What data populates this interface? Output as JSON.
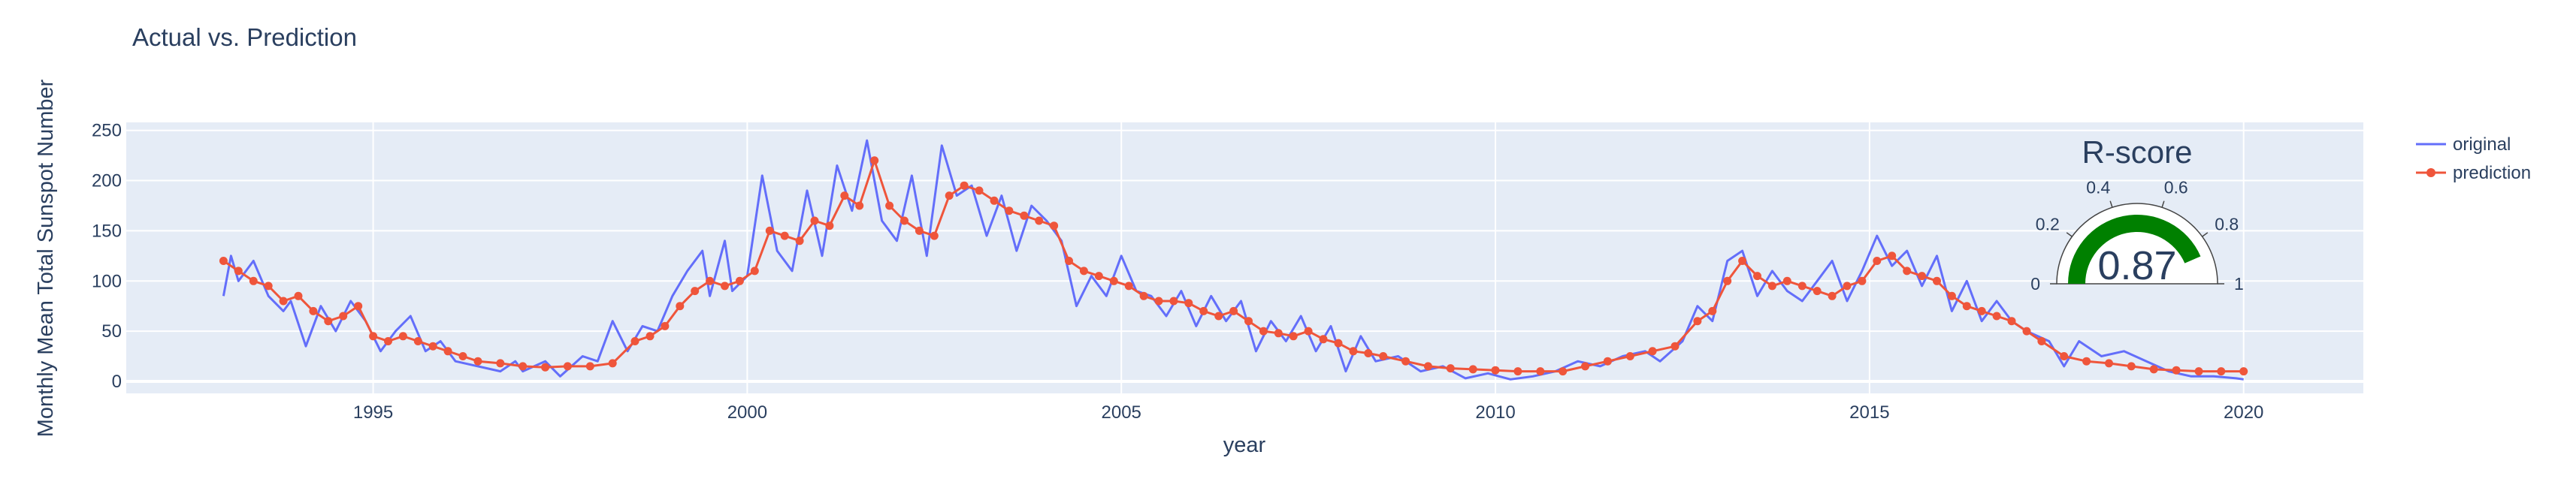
{
  "chart_data": {
    "type": "line",
    "title": "Actual vs. Prediction",
    "xlabel": "year",
    "ylabel": "Monthly Mean Total Sunspot Number",
    "xlim": [
      1991.7,
      2021.6
    ],
    "ylim": [
      -12,
      258
    ],
    "x_ticks": [
      1995,
      2000,
      2005,
      2010,
      2015,
      2020
    ],
    "y_ticks": [
      0,
      50,
      100,
      150,
      200,
      250
    ],
    "grid": true,
    "legend_position": "top-right",
    "series": [
      {
        "name": "original",
        "color": "#636efa",
        "mode": "lines",
        "points": [
          [
            1993.0,
            85
          ],
          [
            1993.1,
            125
          ],
          [
            1993.2,
            100
          ],
          [
            1993.4,
            120
          ],
          [
            1993.6,
            85
          ],
          [
            1993.8,
            70
          ],
          [
            1993.9,
            80
          ],
          [
            1994.1,
            35
          ],
          [
            1994.3,
            75
          ],
          [
            1994.5,
            50
          ],
          [
            1994.7,
            80
          ],
          [
            1994.9,
            60
          ],
          [
            1995.1,
            30
          ],
          [
            1995.3,
            50
          ],
          [
            1995.5,
            65
          ],
          [
            1995.7,
            30
          ],
          [
            1995.9,
            40
          ],
          [
            1996.1,
            20
          ],
          [
            1996.4,
            15
          ],
          [
            1996.7,
            10
          ],
          [
            1996.9,
            20
          ],
          [
            1997.0,
            10
          ],
          [
            1997.3,
            20
          ],
          [
            1997.5,
            5
          ],
          [
            1997.8,
            25
          ],
          [
            1998.0,
            20
          ],
          [
            1998.2,
            60
          ],
          [
            1998.4,
            30
          ],
          [
            1998.6,
            55
          ],
          [
            1998.8,
            50
          ],
          [
            1999.0,
            85
          ],
          [
            1999.2,
            110
          ],
          [
            1999.4,
            130
          ],
          [
            1999.5,
            85
          ],
          [
            1999.7,
            140
          ],
          [
            1999.8,
            90
          ],
          [
            2000.0,
            105
          ],
          [
            2000.2,
            205
          ],
          [
            2000.4,
            130
          ],
          [
            2000.6,
            110
          ],
          [
            2000.8,
            190
          ],
          [
            2001.0,
            125
          ],
          [
            2001.2,
            215
          ],
          [
            2001.4,
            170
          ],
          [
            2001.6,
            240
          ],
          [
            2001.8,
            160
          ],
          [
            2002.0,
            140
          ],
          [
            2002.2,
            205
          ],
          [
            2002.4,
            125
          ],
          [
            2002.6,
            235
          ],
          [
            2002.8,
            185
          ],
          [
            2003.0,
            195
          ],
          [
            2003.2,
            145
          ],
          [
            2003.4,
            185
          ],
          [
            2003.6,
            130
          ],
          [
            2003.8,
            175
          ],
          [
            2004.0,
            160
          ],
          [
            2004.2,
            140
          ],
          [
            2004.4,
            75
          ],
          [
            2004.6,
            105
          ],
          [
            2004.8,
            85
          ],
          [
            2005.0,
            125
          ],
          [
            2005.2,
            90
          ],
          [
            2005.4,
            85
          ],
          [
            2005.6,
            65
          ],
          [
            2005.8,
            90
          ],
          [
            2006.0,
            55
          ],
          [
            2006.2,
            85
          ],
          [
            2006.4,
            60
          ],
          [
            2006.6,
            80
          ],
          [
            2006.8,
            30
          ],
          [
            2007.0,
            60
          ],
          [
            2007.2,
            40
          ],
          [
            2007.4,
            65
          ],
          [
            2007.6,
            30
          ],
          [
            2007.8,
            55
          ],
          [
            2008.0,
            10
          ],
          [
            2008.2,
            45
          ],
          [
            2008.4,
            20
          ],
          [
            2008.7,
            25
          ],
          [
            2009.0,
            10
          ],
          [
            2009.3,
            15
          ],
          [
            2009.6,
            3
          ],
          [
            2009.9,
            8
          ],
          [
            2010.2,
            2
          ],
          [
            2010.5,
            5
          ],
          [
            2010.8,
            10
          ],
          [
            2011.1,
            20
          ],
          [
            2011.4,
            15
          ],
          [
            2011.7,
            25
          ],
          [
            2012.0,
            30
          ],
          [
            2012.2,
            20
          ],
          [
            2012.5,
            40
          ],
          [
            2012.7,
            75
          ],
          [
            2012.9,
            60
          ],
          [
            2013.1,
            120
          ],
          [
            2013.3,
            130
          ],
          [
            2013.5,
            85
          ],
          [
            2013.7,
            110
          ],
          [
            2013.9,
            90
          ],
          [
            2014.1,
            80
          ],
          [
            2014.3,
            100
          ],
          [
            2014.5,
            120
          ],
          [
            2014.7,
            80
          ],
          [
            2014.9,
            110
          ],
          [
            2015.1,
            145
          ],
          [
            2015.3,
            115
          ],
          [
            2015.5,
            130
          ],
          [
            2015.7,
            95
          ],
          [
            2015.9,
            125
          ],
          [
            2016.1,
            70
          ],
          [
            2016.3,
            100
          ],
          [
            2016.5,
            60
          ],
          [
            2016.7,
            80
          ],
          [
            2016.9,
            60
          ],
          [
            2017.1,
            50
          ],
          [
            2017.4,
            40
          ],
          [
            2017.6,
            15
          ],
          [
            2017.8,
            40
          ],
          [
            2018.1,
            25
          ],
          [
            2018.4,
            30
          ],
          [
            2018.7,
            20
          ],
          [
            2019.0,
            10
          ],
          [
            2019.3,
            5
          ],
          [
            2019.6,
            5
          ],
          [
            2019.9,
            3
          ],
          [
            2020.0,
            2
          ]
        ]
      },
      {
        "name": "prediction",
        "color": "#ef553b",
        "mode": "lines+markers",
        "points": [
          [
            1993.0,
            120
          ],
          [
            1993.2,
            110
          ],
          [
            1993.4,
            100
          ],
          [
            1993.6,
            95
          ],
          [
            1993.8,
            80
          ],
          [
            1994.0,
            85
          ],
          [
            1994.2,
            70
          ],
          [
            1994.4,
            60
          ],
          [
            1994.6,
            65
          ],
          [
            1994.8,
            75
          ],
          [
            1995.0,
            45
          ],
          [
            1995.2,
            40
          ],
          [
            1995.4,
            45
          ],
          [
            1995.6,
            40
          ],
          [
            1995.8,
            35
          ],
          [
            1996.0,
            30
          ],
          [
            1996.2,
            25
          ],
          [
            1996.4,
            20
          ],
          [
            1996.7,
            18
          ],
          [
            1997.0,
            15
          ],
          [
            1997.3,
            14
          ],
          [
            1997.6,
            15
          ],
          [
            1997.9,
            15
          ],
          [
            1998.2,
            18
          ],
          [
            1998.5,
            40
          ],
          [
            1998.7,
            45
          ],
          [
            1998.9,
            55
          ],
          [
            1999.1,
            75
          ],
          [
            1999.3,
            90
          ],
          [
            1999.5,
            100
          ],
          [
            1999.7,
            95
          ],
          [
            1999.9,
            100
          ],
          [
            2000.1,
            110
          ],
          [
            2000.3,
            150
          ],
          [
            2000.5,
            145
          ],
          [
            2000.7,
            140
          ],
          [
            2000.9,
            160
          ],
          [
            2001.1,
            155
          ],
          [
            2001.3,
            185
          ],
          [
            2001.5,
            175
          ],
          [
            2001.7,
            220
          ],
          [
            2001.9,
            175
          ],
          [
            2002.1,
            160
          ],
          [
            2002.3,
            150
          ],
          [
            2002.5,
            145
          ],
          [
            2002.7,
            185
          ],
          [
            2002.9,
            195
          ],
          [
            2003.1,
            190
          ],
          [
            2003.3,
            180
          ],
          [
            2003.5,
            170
          ],
          [
            2003.7,
            165
          ],
          [
            2003.9,
            160
          ],
          [
            2004.1,
            155
          ],
          [
            2004.3,
            120
          ],
          [
            2004.5,
            110
          ],
          [
            2004.7,
            105
          ],
          [
            2004.9,
            100
          ],
          [
            2005.1,
            95
          ],
          [
            2005.3,
            85
          ],
          [
            2005.5,
            80
          ],
          [
            2005.7,
            80
          ],
          [
            2005.9,
            78
          ],
          [
            2006.1,
            70
          ],
          [
            2006.3,
            65
          ],
          [
            2006.5,
            70
          ],
          [
            2006.7,
            60
          ],
          [
            2006.9,
            50
          ],
          [
            2007.1,
            48
          ],
          [
            2007.3,
            45
          ],
          [
            2007.5,
            50
          ],
          [
            2007.7,
            42
          ],
          [
            2007.9,
            38
          ],
          [
            2008.1,
            30
          ],
          [
            2008.3,
            28
          ],
          [
            2008.5,
            25
          ],
          [
            2008.8,
            20
          ],
          [
            2009.1,
            15
          ],
          [
            2009.4,
            13
          ],
          [
            2009.7,
            12
          ],
          [
            2010.0,
            11
          ],
          [
            2010.3,
            10
          ],
          [
            2010.6,
            10
          ],
          [
            2010.9,
            10
          ],
          [
            2011.2,
            15
          ],
          [
            2011.5,
            20
          ],
          [
            2011.8,
            25
          ],
          [
            2012.1,
            30
          ],
          [
            2012.4,
            35
          ],
          [
            2012.7,
            60
          ],
          [
            2012.9,
            70
          ],
          [
            2013.1,
            100
          ],
          [
            2013.3,
            120
          ],
          [
            2013.5,
            105
          ],
          [
            2013.7,
            95
          ],
          [
            2013.9,
            100
          ],
          [
            2014.1,
            95
          ],
          [
            2014.3,
            90
          ],
          [
            2014.5,
            85
          ],
          [
            2014.7,
            95
          ],
          [
            2014.9,
            100
          ],
          [
            2015.1,
            120
          ],
          [
            2015.3,
            125
          ],
          [
            2015.5,
            110
          ],
          [
            2015.7,
            105
          ],
          [
            2015.9,
            100
          ],
          [
            2016.1,
            85
          ],
          [
            2016.3,
            75
          ],
          [
            2016.5,
            70
          ],
          [
            2016.7,
            65
          ],
          [
            2016.9,
            60
          ],
          [
            2017.1,
            50
          ],
          [
            2017.3,
            40
          ],
          [
            2017.6,
            25
          ],
          [
            2017.9,
            20
          ],
          [
            2018.2,
            18
          ],
          [
            2018.5,
            15
          ],
          [
            2018.8,
            12
          ],
          [
            2019.1,
            11
          ],
          [
            2019.4,
            10
          ],
          [
            2019.7,
            10
          ],
          [
            2020.0,
            10
          ]
        ]
      }
    ],
    "gauge": {
      "title": "R-score",
      "value": 0.87,
      "value_text": "0.87",
      "range": [
        0,
        1
      ],
      "bar_color": "#008000",
      "ticks": [
        "0",
        "0.2",
        "0.4",
        "0.6",
        "0.8",
        "1"
      ]
    }
  }
}
